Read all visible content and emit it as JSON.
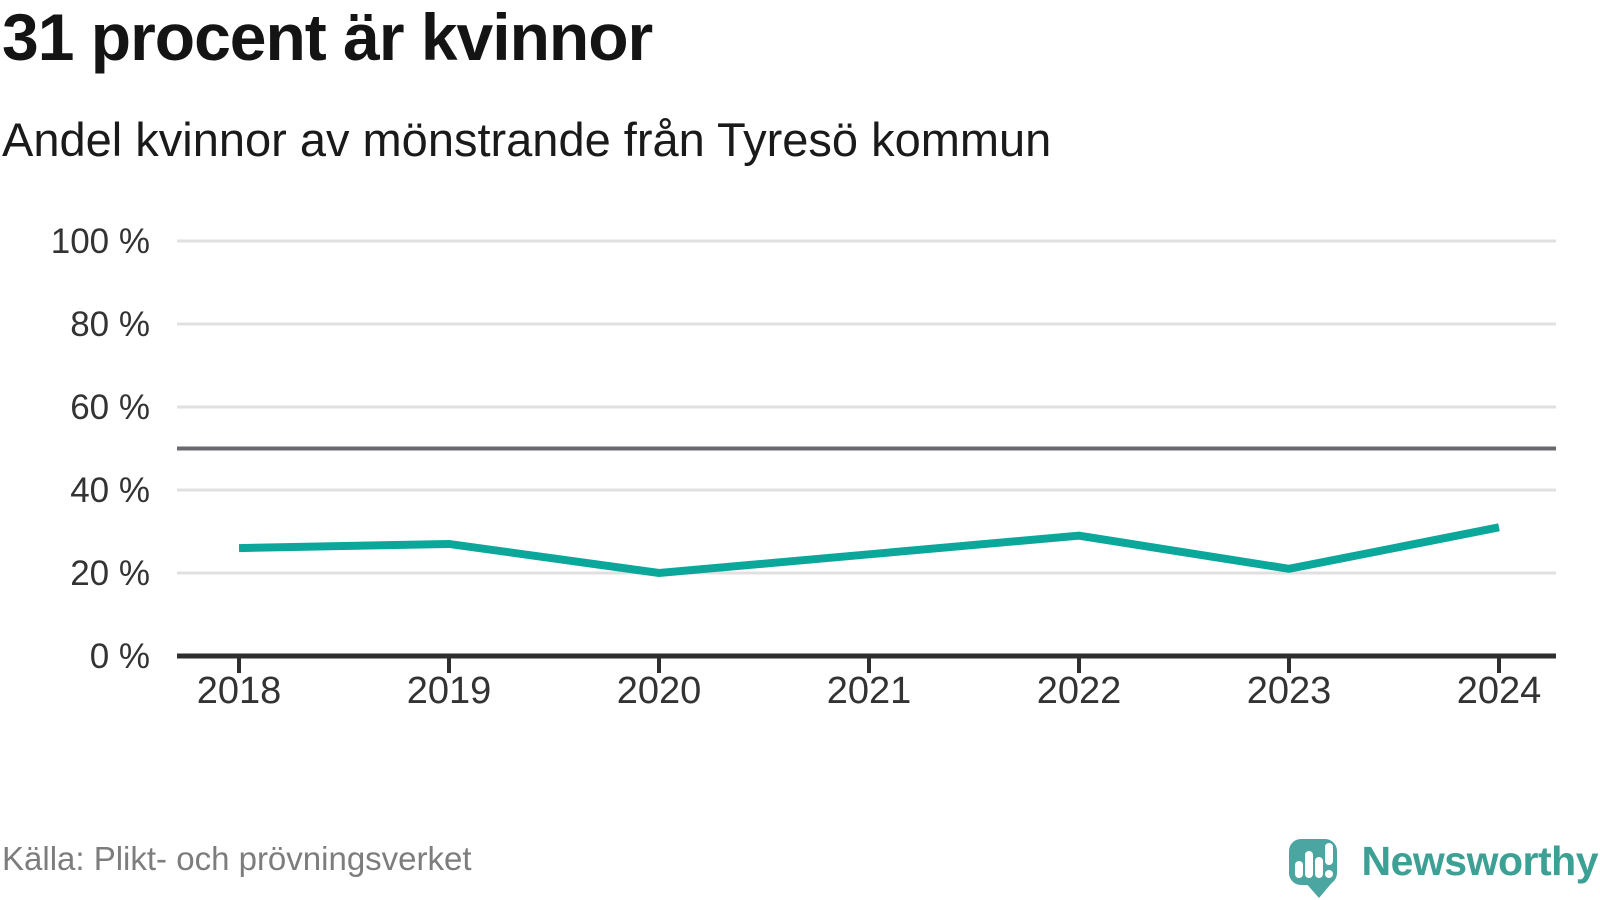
{
  "header": {
    "title": "31 procent är kvinnor",
    "subtitle": "Andel kvinnor av mönstrande från Tyresö kommun"
  },
  "footer": {
    "source": "Källa: Plikt- och prövningsverket",
    "brand": "Newsworthy",
    "logo_icon": "speech-bubble-with-bar-chart-and-exclamation"
  },
  "colors": {
    "line": "#0ba79b",
    "reference_line": "#69696e",
    "grid": "#e0e0e0",
    "axis": "#2e2e2e",
    "tick_label": "#333333",
    "title_text": "#141414",
    "source_text": "#7d7d7d",
    "logo_mark": "#4ba5a1",
    "logo_text": "#3da095"
  },
  "chart_data": {
    "type": "line",
    "title": "31 procent är kvinnor",
    "subtitle": "Andel kvinnor av mönstrande från Tyresö kommun",
    "categories": [
      "2018",
      "2019",
      "2020",
      "2021",
      "2022",
      "2023",
      "2024"
    ],
    "series": [
      {
        "name": "Andel kvinnor av mönstrande",
        "values": [
          26,
          27,
          20,
          24.5,
          29,
          21,
          31
        ]
      }
    ],
    "unit": "%",
    "ylim": [
      0,
      100
    ],
    "yticks": [
      {
        "value": 0,
        "label": "0 %"
      },
      {
        "value": 20,
        "label": "20 %"
      },
      {
        "value": 40,
        "label": "40 %"
      },
      {
        "value": 60,
        "label": "60 %"
      },
      {
        "value": 80,
        "label": "80 %"
      },
      {
        "value": 100,
        "label": "100 %"
      }
    ],
    "reference_line": {
      "value": 50
    },
    "grid": true,
    "legend": false,
    "markers": false
  }
}
